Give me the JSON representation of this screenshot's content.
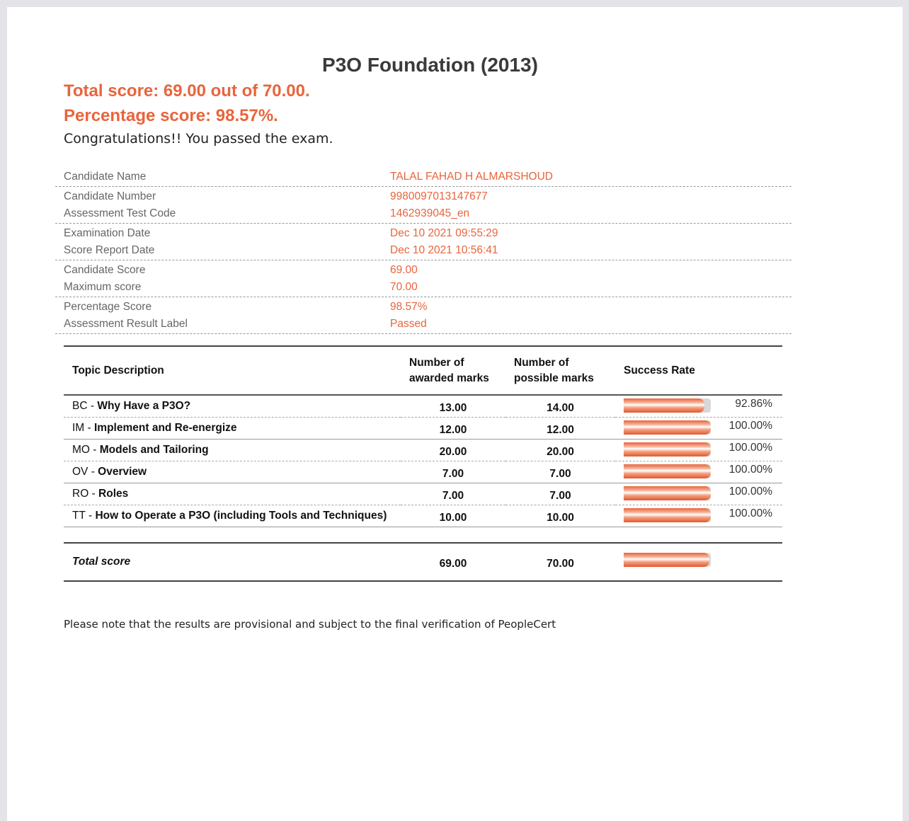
{
  "title": "P3O Foundation (2013)",
  "total_line": "Total score: 69.00 out of 70.00.",
  "percentage_line": "Percentage score: 98.57%.",
  "congrats": "Congratulations!! You passed the exam.",
  "info": [
    [
      {
        "label": "Candidate Name",
        "value": "TALAL FAHAD H ALMARSHOUD"
      }
    ],
    [
      {
        "label": "Candidate Number",
        "value": "9980097013147677"
      },
      {
        "label": "Assessment Test Code",
        "value": "1462939045_en"
      }
    ],
    [
      {
        "label": "Examination Date",
        "value": "Dec 10 2021 09:55:29"
      },
      {
        "label": "Score Report Date",
        "value": "Dec 10 2021 10:56:41"
      }
    ],
    [
      {
        "label": "Candidate Score",
        "value": "69.00"
      },
      {
        "label": "Maximum score",
        "value": "70.00"
      }
    ],
    [
      {
        "label": "Percentage Score",
        "value": "98.57%"
      },
      {
        "label": "Assessment Result Label",
        "value": "Passed"
      }
    ]
  ],
  "table": {
    "headers": [
      "Topic Description",
      "Number of awarded marks",
      "Number of possible marks",
      "Success Rate"
    ],
    "rows": [
      {
        "code": "BC - ",
        "topic": "Why Have a P3O?",
        "awarded": "13.00",
        "possible": "14.00",
        "rate": "92.86%",
        "fraction": 0.9286
      },
      {
        "code": "IM - ",
        "topic": "Implement and Re-energize",
        "awarded": "12.00",
        "possible": "12.00",
        "rate": "100.00%",
        "fraction": 1
      },
      {
        "code": "MO - ",
        "topic": "Models and Tailoring",
        "awarded": "20.00",
        "possible": "20.00",
        "rate": "100.00%",
        "fraction": 1
      },
      {
        "code": "OV - ",
        "topic": "Overview",
        "awarded": "7.00",
        "possible": "7.00",
        "rate": "100.00%",
        "fraction": 1
      },
      {
        "code": "RO - ",
        "topic": "Roles",
        "awarded": "7.00",
        "possible": "7.00",
        "rate": "100.00%",
        "fraction": 1
      },
      {
        "code": "TT - ",
        "topic": "How to Operate a P3O (including Tools and Techniques)",
        "awarded": "10.00",
        "possible": "10.00",
        "rate": "100.00%",
        "fraction": 1
      }
    ],
    "total": {
      "label": "Total score",
      "awarded": "69.00",
      "possible": "70.00",
      "fraction": 0.9857
    }
  },
  "note": "Please note that the results are provisional and subject to the final verification of PeopleCert",
  "colors": {
    "accent": "#e8643c"
  }
}
